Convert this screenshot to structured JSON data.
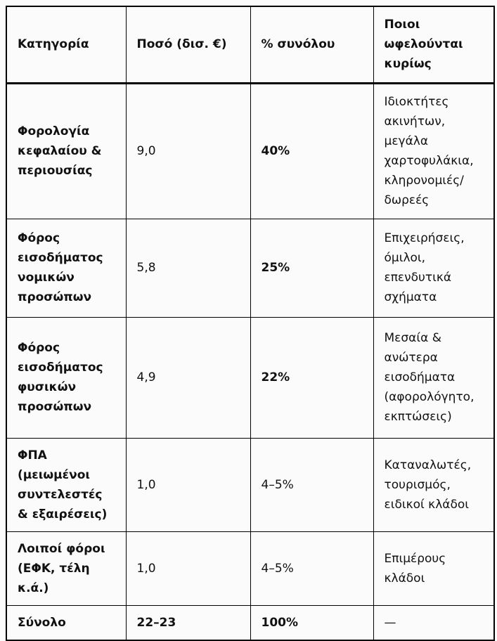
{
  "table": {
    "headers": {
      "category": "Κατηγορία",
      "amount": "Ποσό (δισ. €)",
      "percent": "% συνόλου",
      "beneficiaries": "Ποιοι ωφελούνται κυρίως"
    },
    "rows": [
      {
        "category": "Φορολογία κεφαλαίου & περιουσίας",
        "amount": "9,0",
        "percent": "40%",
        "beneficiaries": "Ιδιοκτήτες ακινήτων, μεγάλα χαρτοφυλάκια, κληρονομιές/δωρεές"
      },
      {
        "category": "Φόρος εισοδήματος νομικών προσώπων",
        "amount": "5,8",
        "percent": "25%",
        "beneficiaries": "Επιχειρήσεις, όμιλοι, επενδυτικά σχήματα"
      },
      {
        "category": "Φόρος εισοδήματος φυσικών προσώπων",
        "amount": "4,9",
        "percent": "22%",
        "beneficiaries": "Μεσαία & ανώτερα εισοδήματα (αφορολόγητο, εκπτώσεις)"
      },
      {
        "category": "ΦΠΑ (μειωμένοι συντελεστές & εξαιρέσεις)",
        "amount": "1,0",
        "percent": "4–5%",
        "beneficiaries": "Καταναλωτές, τουρισμός, ειδικοί κλάδοι"
      },
      {
        "category": "Λοιποί φόροι (ΕΦΚ, τέλη κ.ά.)",
        "amount": "1,0",
        "percent": "4–5%",
        "beneficiaries": "Επιμέρους κλάδοι"
      },
      {
        "category": "Σύνολο",
        "amount": "22–23",
        "percent": "100%",
        "beneficiaries": "—"
      }
    ]
  },
  "colors": {
    "border": "#000000",
    "text": "#111111",
    "background": "#fbfbfb"
  }
}
